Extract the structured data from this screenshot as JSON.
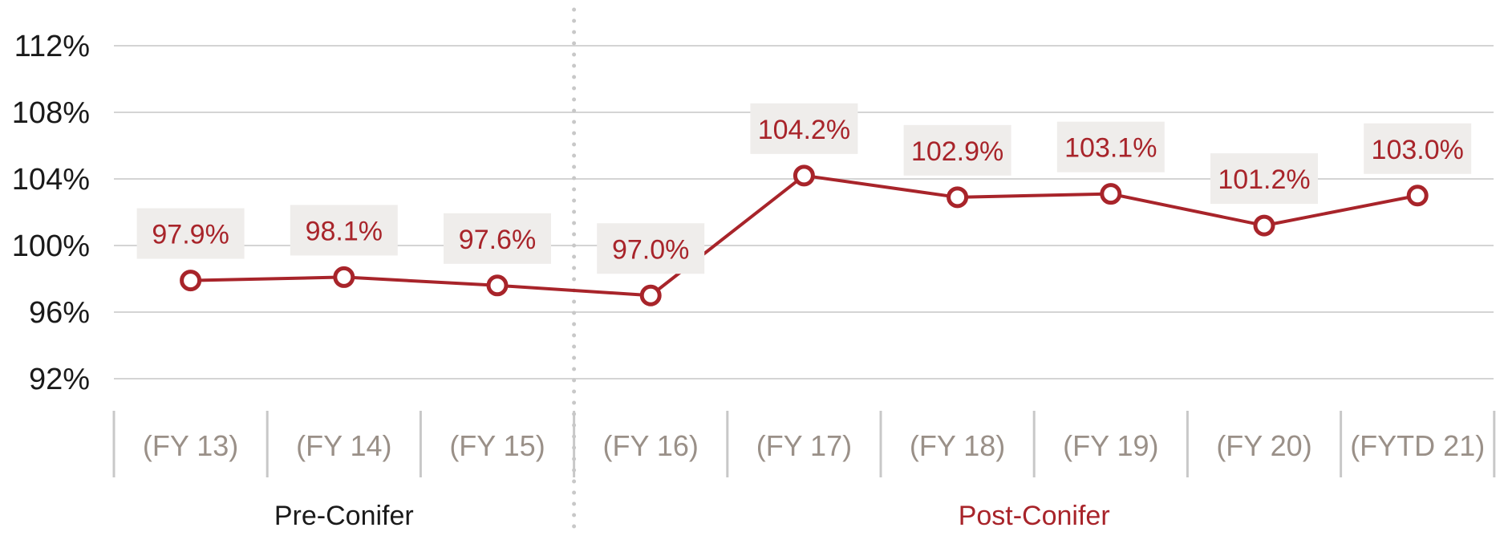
{
  "chart_data": {
    "type": "line",
    "categories": [
      "(FY 13)",
      "(FY 14)",
      "(FY 15)",
      "(FY 16)",
      "(FY 17)",
      "(FY 18)",
      "(FY 19)",
      "(FY 20)",
      "(FYTD 21)"
    ],
    "series": [
      {
        "values": [
          97.9,
          98.1,
          97.6,
          97.0,
          104.2,
          102.9,
          103.1,
          101.2,
          103.0
        ],
        "labels": [
          "97.9%",
          "98.1%",
          "97.6%",
          "97.0%",
          "104.2%",
          "102.9%",
          "103.1%",
          "101.2%",
          "103.0%"
        ],
        "color": "#a8242a"
      }
    ],
    "yticks": [
      "92%",
      "96%",
      "100%",
      "104%",
      "108%",
      "112%"
    ],
    "ytick_values": [
      92,
      96,
      100,
      104,
      108,
      112
    ],
    "ylim": [
      92,
      112
    ],
    "grid": true,
    "groups": [
      {
        "label": "Pre-Conifer",
        "color": "#1a1a1a",
        "categories": [
          "(FY 13)",
          "(FY 14)",
          "(FY 15)"
        ]
      },
      {
        "label": "Post-Conifer",
        "color": "#a8242a",
        "categories": [
          "(FY 16)",
          "(FY 17)",
          "(FY 18)",
          "(FY 19)",
          "(FY 20)",
          "(FYTD 21)"
        ]
      }
    ],
    "colors": {
      "line": "#a8242a",
      "label_box": "#efedeb",
      "grid": "#d4d4d4",
      "divider": "#c8c8c8",
      "xtick": "#9a9088"
    }
  }
}
